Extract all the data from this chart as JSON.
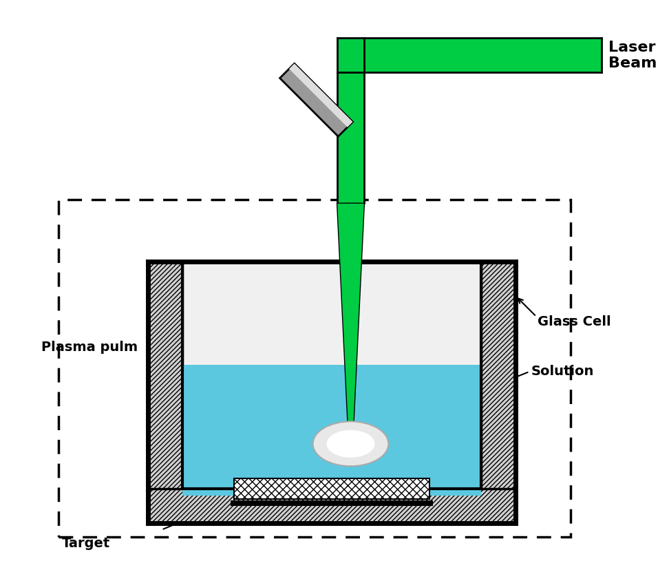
{
  "bg_color": "#ffffff",
  "green_color": "#00cc44",
  "green_dark": "#00aa33",
  "black": "#000000",
  "gray_light": "#cccccc",
  "gray_hatch": "#aaaaaa",
  "blue_solution": "#5bc8e0",
  "plasma_color": "#e0e0e0",
  "target_hatch_color": "#222222",
  "title": "",
  "labels": {
    "laser_beam": "Laser\nBeam",
    "glass_cell": "Glass Cell",
    "solution": "Solution",
    "plasma_pulm": "Plasma pulm",
    "target": "Target"
  },
  "fig_width": 9.72,
  "fig_height": 8.15
}
